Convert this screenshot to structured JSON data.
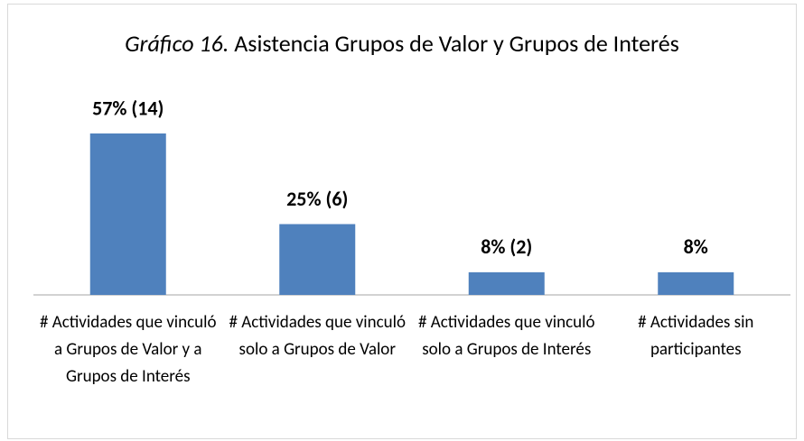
{
  "chart_data": {
    "type": "bar",
    "title_label": "Gráfico 16.",
    "title": "Asistencia Grupos de Valor y Grupos de Interés",
    "categories": [
      "# Actividades que vinculó a Grupos de Valor y a Grupos de Interés",
      "# Actividades que vinculó solo a Grupos de Valor",
      "# Actividades que vinculó solo a Grupos de Interés",
      "# Actividades sin participantes"
    ],
    "values": [
      57,
      25,
      8,
      8
    ],
    "value_labels": [
      "57% (14)",
      "25% (6)",
      "8% (2)",
      "8%"
    ],
    "color": "#4f81bd"
  }
}
